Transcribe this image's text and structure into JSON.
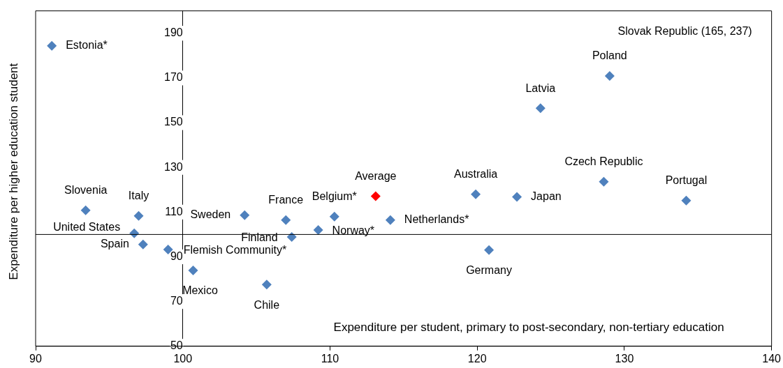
{
  "chart_data": {
    "type": "scatter",
    "xlabel": "Expenditure per student, primary to post-secondary, non-tertiary education",
    "ylabel": "Expenditure per higher education student",
    "x": [
      91.1,
      93.4,
      97.0,
      96.7,
      97.3,
      99.0,
      100.7,
      104.2,
      107.0,
      107.4,
      105.7,
      110.3,
      109.2,
      113.1,
      114.1,
      119.9,
      120.8,
      122.7,
      124.3,
      128.6,
      129.0,
      134.2
    ],
    "values": [
      184.4,
      110.8,
      108.3,
      100.5,
      95.5,
      93.3,
      83.9,
      108.6,
      106.4,
      98.9,
      77.6,
      108.0,
      102.0,
      117.1,
      106.4,
      118.0,
      93.0,
      116.8,
      156.5,
      123.6,
      170.9,
      115.2
    ],
    "colors": [
      "#4f81bd",
      "#4f81bd",
      "#4f81bd",
      "#4f81bd",
      "#4f81bd",
      "#4f81bd",
      "#4f81bd",
      "#4f81bd",
      "#4f81bd",
      "#4f81bd",
      "#4f81bd",
      "#4f81bd",
      "#4f81bd",
      "#ff0000",
      "#4f81bd",
      "#4f81bd",
      "#4f81bd",
      "#4f81bd",
      "#4f81bd",
      "#4f81bd",
      "#4f81bd",
      "#4f81bd"
    ],
    "marker": "diamond",
    "grid": false,
    "legend": false,
    "xlim": [
      90,
      140
    ],
    "xticks": [
      90,
      100,
      110,
      120,
      130,
      140
    ],
    "ylim": [
      50,
      200
    ],
    "yticks": [
      50,
      70,
      90,
      110,
      130,
      150,
      170,
      190
    ],
    "ref_lines": [
      {
        "axis": "y",
        "value": 100,
        "color": "#000000"
      }
    ],
    "annotations": [
      {
        "text": "Estonia*",
        "x": 91.1,
        "y": 184.4
      },
      {
        "text": "Slovenia",
        "x": 93.4,
        "y": 110.8
      },
      {
        "text": "Italy",
        "x": 97.0,
        "y": 108.3
      },
      {
        "text": "United States",
        "x": 96.7,
        "y": 100.5
      },
      {
        "text": "Spain",
        "x": 97.3,
        "y": 95.5
      },
      {
        "text": "Flemish Community*",
        "x": 99.0,
        "y": 93.3
      },
      {
        "text": "Mexico",
        "x": 100.7,
        "y": 83.9
      },
      {
        "text": "Sweden",
        "x": 104.2,
        "y": 108.6
      },
      {
        "text": "France",
        "x": 107.0,
        "y": 106.4
      },
      {
        "text": "Finland",
        "x": 107.4,
        "y": 98.9
      },
      {
        "text": "Chile",
        "x": 105.7,
        "y": 77.6
      },
      {
        "text": "Belgium*",
        "x": 110.3,
        "y": 108.0
      },
      {
        "text": "Norway*",
        "x": 109.2,
        "y": 102.0
      },
      {
        "text": "Average",
        "x": 113.1,
        "y": 117.1
      },
      {
        "text": "Netherlands*",
        "x": 114.1,
        "y": 106.4
      },
      {
        "text": "Australia",
        "x": 119.9,
        "y": 118.0
      },
      {
        "text": "Germany",
        "x": 120.8,
        "y": 93.0
      },
      {
        "text": "Japan",
        "x": 122.7,
        "y": 116.8
      },
      {
        "text": "Latvia",
        "x": 124.3,
        "y": 156.5
      },
      {
        "text": "Czech Republic",
        "x": 128.6,
        "y": 123.6
      },
      {
        "text": "Poland",
        "x": 129.0,
        "y": 170.9
      },
      {
        "text": "Portugal",
        "x": 134.2,
        "y": 115.2
      },
      "Slovak Republic (165, 237)"
    ]
  }
}
